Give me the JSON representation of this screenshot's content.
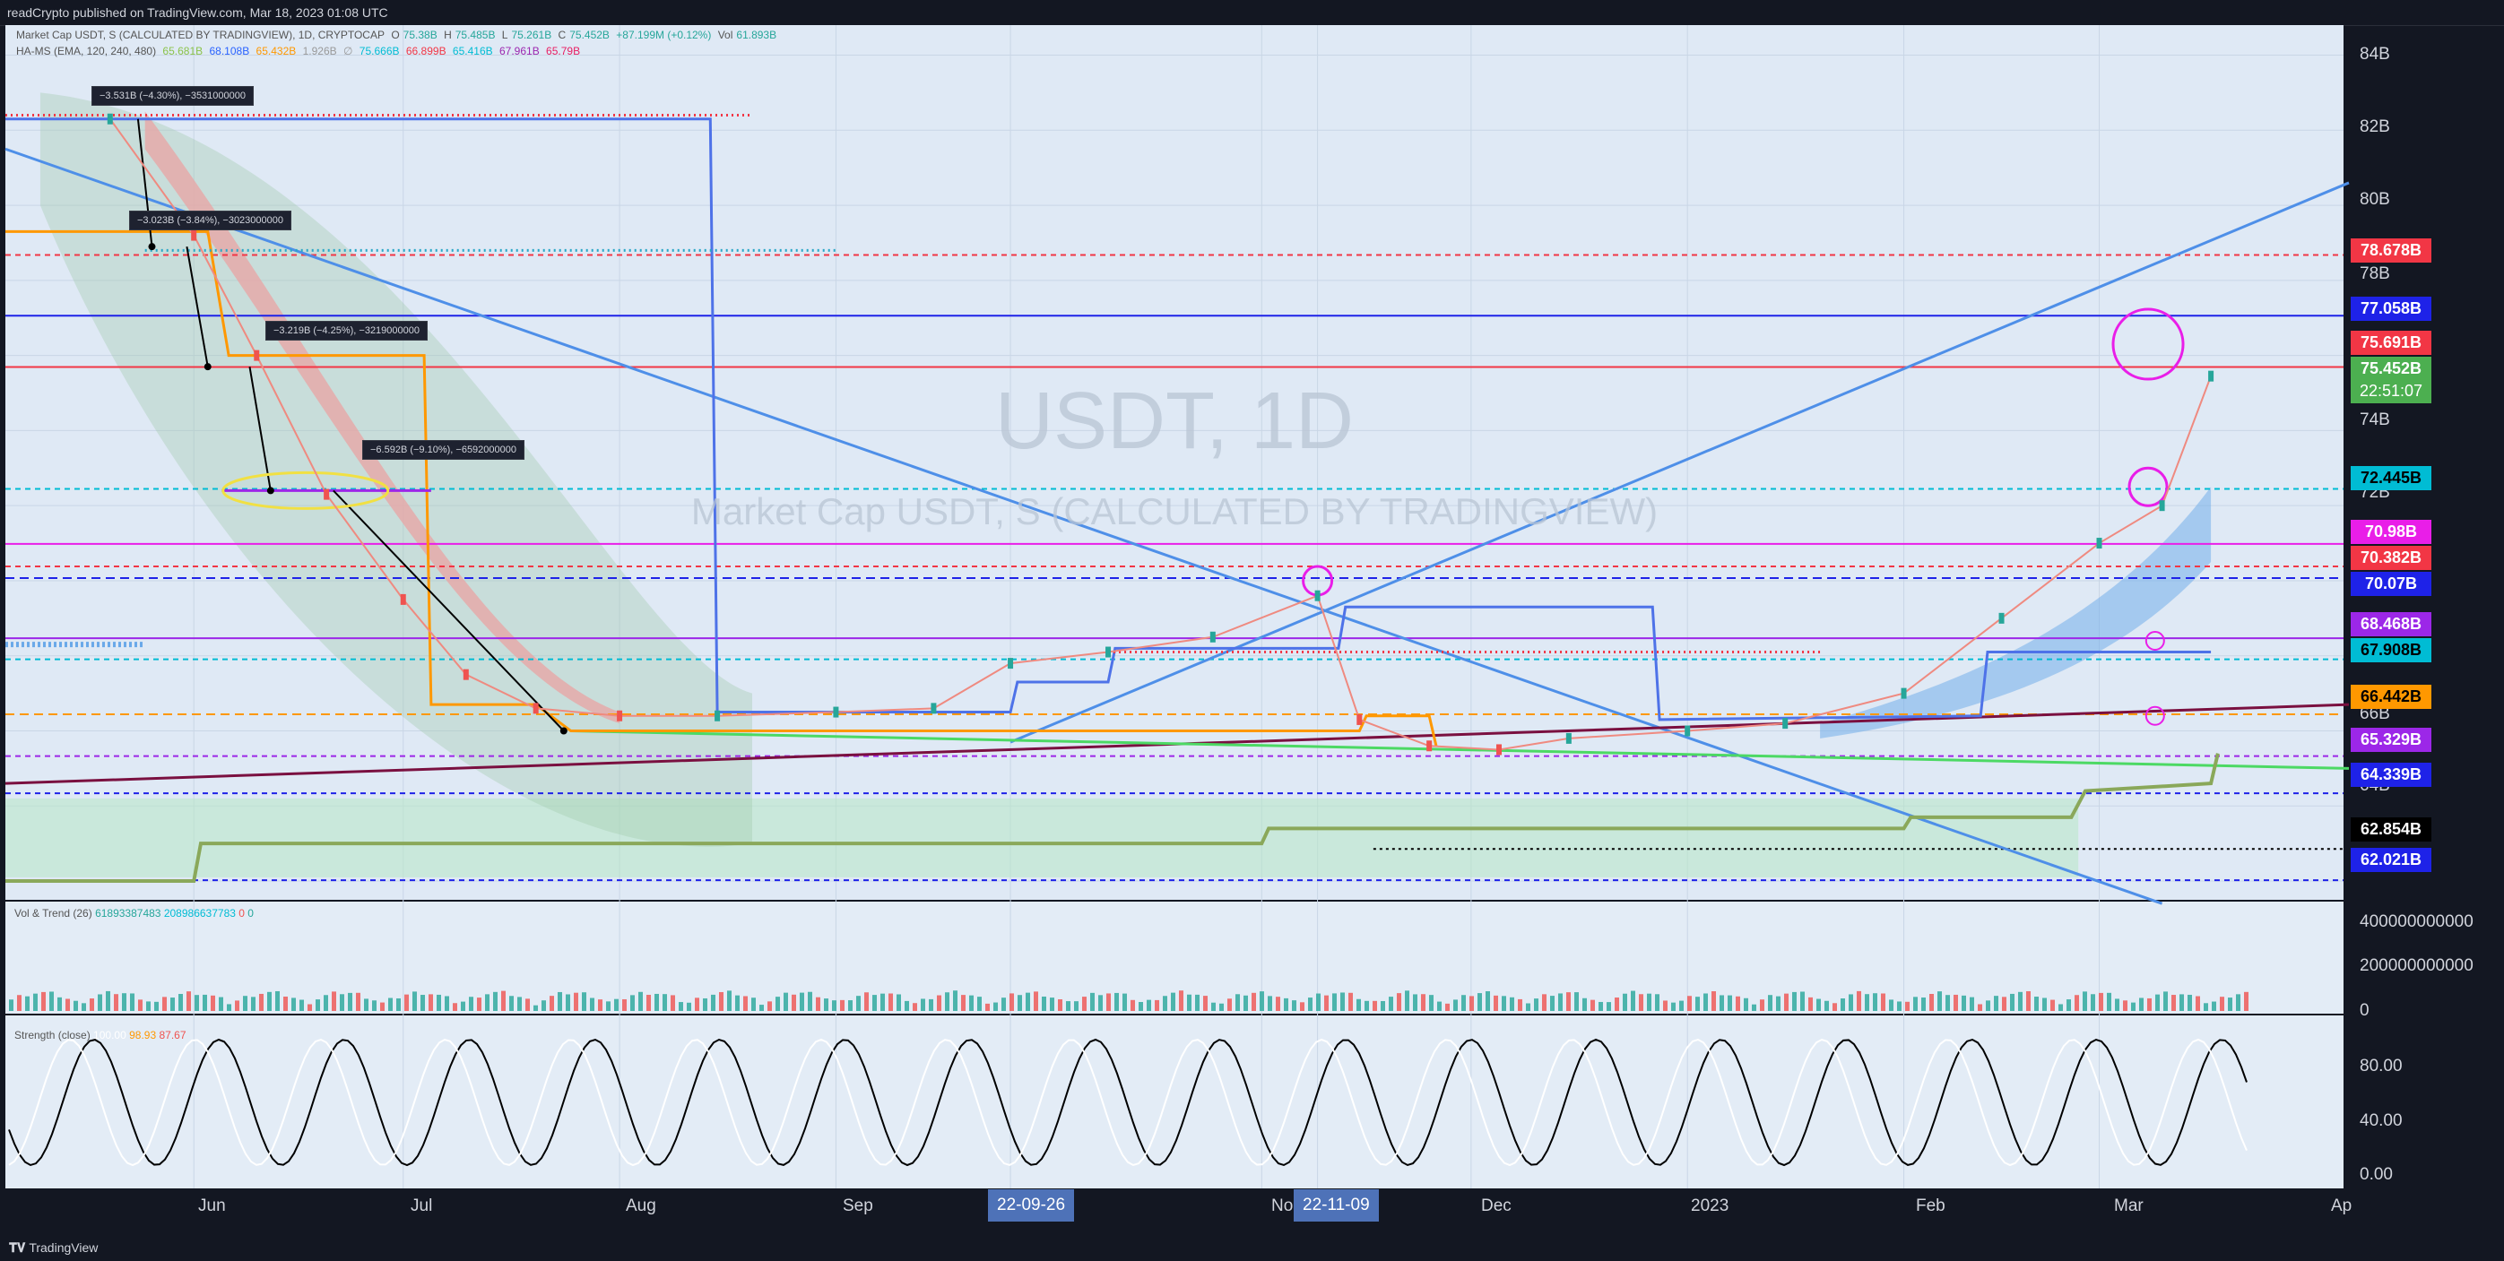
{
  "header": {
    "title": "readCrypto published on TradingView.com, Mar 18, 2023 01:08 UTC"
  },
  "legend": {
    "line1": {
      "symbol": "Market Cap USDT, S (CALCULATED BY TRADINGVIEW), 1D, CRYPTOCAP",
      "o_label": "O",
      "o": "75.38B",
      "h_label": "H",
      "h": "75.485B",
      "l_label": "L",
      "l": "75.261B",
      "c_label": "C",
      "c": "75.452B",
      "chg": "+87.199M (+0.12%)",
      "vol_label": "Vol",
      "vol": "61.893B"
    },
    "line2": {
      "name": "HA-MS (EMA, 120, 240, 480)",
      "v1": "65.681B",
      "v2": "68.108B",
      "v3": "65.432B",
      "v4": "1.926B",
      "v5": "∅",
      "v6": "75.666B",
      "v7": "66.899B",
      "v8": "65.416B",
      "v9": "67.961B",
      "v10": "65.79B"
    }
  },
  "watermark": {
    "symbol": "USDT, 1D",
    "desc": "Market Cap USDT, S (CALCULATED BY TRADINGVIEW)"
  },
  "measures": [
    {
      "text": "−3.531B (−4.30%), −3531000000"
    },
    {
      "text": "−3.023B (−3.84%), −3023000000"
    },
    {
      "text": "−3.219B (−4.25%), −3219000000"
    },
    {
      "text": "−6.592B (−9.10%), −6592000000"
    }
  ],
  "price_axis": {
    "ticks": [
      "84B",
      "82B",
      "80B",
      "78B",
      "74B",
      "72B",
      "66B",
      "64B"
    ]
  },
  "price_badges": [
    {
      "text": "78.678B",
      "bg": "#f23645",
      "fg": "#ffffff"
    },
    {
      "text": "77.058B",
      "bg": "#1e22e8",
      "fg": "#ffffff"
    },
    {
      "text": "75.691B",
      "bg": "#f23645",
      "fg": "#ffffff"
    },
    {
      "text": "75.452B",
      "bg": "#4caf50",
      "fg": "#ffffff"
    },
    {
      "text": "22:51:07",
      "bg": "#4caf50",
      "fg": "#ffffff"
    },
    {
      "text": "72.445B",
      "bg": "#00bcd4",
      "fg": "#000000"
    },
    {
      "text": "70.98B",
      "bg": "#e91ee8",
      "fg": "#ffffff"
    },
    {
      "text": "70.382B",
      "bg": "#f23645",
      "fg": "#ffffff"
    },
    {
      "text": "70.07B",
      "bg": "#1e22e8",
      "fg": "#ffffff"
    },
    {
      "text": "68.468B",
      "bg": "#9c27e8",
      "fg": "#ffffff"
    },
    {
      "text": "67.908B",
      "bg": "#00bcd4",
      "fg": "#000000"
    },
    {
      "text": "66.442B",
      "bg": "#ff9800",
      "fg": "#000000"
    },
    {
      "text": "65.329B",
      "bg": "#9c27e8",
      "fg": "#ffffff"
    },
    {
      "text": "64.339B",
      "bg": "#1e22e8",
      "fg": "#ffffff"
    },
    {
      "text": "62.854B",
      "bg": "#000000",
      "fg": "#ffffff"
    },
    {
      "text": "62.021B",
      "bg": "#1e22e8",
      "fg": "#ffffff"
    }
  ],
  "volume_pane": {
    "legend": {
      "name": "Vol & Trend (26)",
      "v1": "61893387483",
      "v2": "208986637783",
      "v3": "0",
      "v4": "0"
    },
    "ticks": [
      "400000000000",
      "200000000000",
      "0"
    ]
  },
  "strength_pane": {
    "legend": {
      "name": "Strength (close)",
      "v1": "100.00",
      "v2": "98.93",
      "v3": "87.67"
    },
    "ticks": [
      "80.00",
      "40.00",
      "0.00"
    ]
  },
  "time_axis": {
    "labels": [
      "Jun",
      "Jul",
      "Aug",
      "Sep",
      "No",
      "Dec",
      "2023",
      "Feb",
      "Mar",
      "Ap"
    ],
    "highlighted": [
      "22-09-26",
      "22-11-09"
    ]
  },
  "footer": {
    "brand": "TradingView"
  },
  "colors": {
    "background": "#131722",
    "pane_bg": "#dfe9f5",
    "up": "#26a69a",
    "down": "#ef5350"
  },
  "chart_data": {
    "type": "line",
    "title": "USDT, 1D",
    "subtitle": "Market Cap USDT, S (CALCULATED BY TRADINGVIEW)",
    "ylim": [
      61.5,
      84.8
    ],
    "x": [
      "2022-05-20",
      "2022-06-01",
      "2022-06-10",
      "2022-06-20",
      "2022-07-01",
      "2022-07-10",
      "2022-07-20",
      "2022-08-01",
      "2022-08-15",
      "2022-09-01",
      "2022-09-15",
      "2022-09-26",
      "2022-10-10",
      "2022-10-25",
      "2022-11-09",
      "2022-11-15",
      "2022-11-25",
      "2022-12-05",
      "2022-12-15",
      "2023-01-01",
      "2023-01-15",
      "2023-02-01",
      "2023-02-15",
      "2023-03-01",
      "2023-03-10",
      "2023-03-17"
    ],
    "series": [
      {
        "values": [
          82.3,
          79.2,
          76.0,
          72.3,
          69.5,
          67.5,
          66.6,
          66.4,
          66.4,
          66.5,
          66.6,
          67.8,
          68.1,
          68.5,
          69.6,
          66.3,
          65.6,
          65.5,
          65.8,
          66.0,
          66.2,
          67.0,
          69.0,
          71.0,
          72.0,
          75.45
        ]
      }
    ]
  }
}
